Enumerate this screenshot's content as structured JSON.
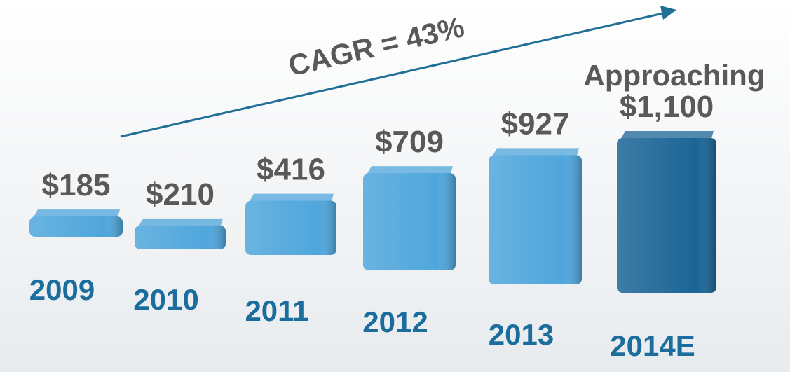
{
  "chart_data": {
    "type": "bar",
    "categories": [
      "2009",
      "2010",
      "2011",
      "2012",
      "2013",
      "2014E"
    ],
    "values": [
      185,
      210,
      416,
      709,
      927,
      1100
    ],
    "value_labels": [
      "$185",
      "$210",
      "$416",
      "$709",
      "$927",
      "$1,100"
    ],
    "colors": [
      "#4fa6dc",
      "#4fa6dc",
      "#4fa6dc",
      "#4fa6dc",
      "#4fa6dc",
      "#1b6596"
    ],
    "annotations": [
      {
        "text": "CAGR = 43%"
      },
      {
        "text": "Approaching"
      }
    ]
  }
}
